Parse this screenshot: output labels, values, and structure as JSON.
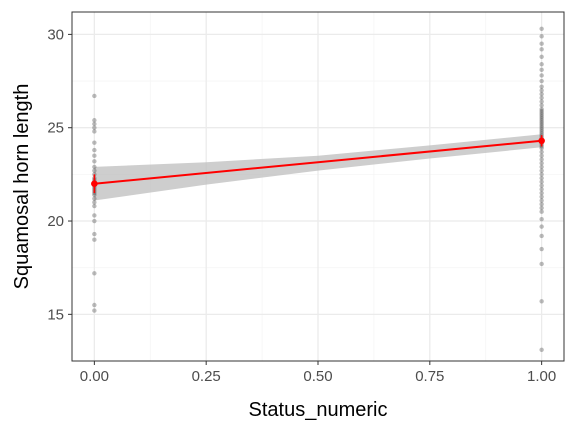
{
  "chart_data": {
    "type": "scatter",
    "xlabel": "Status_numeric",
    "ylabel": "Squamosal horn length",
    "xlim": [
      -0.05,
      1.05
    ],
    "ylim": [
      12.5,
      31.2
    ],
    "x_ticks": [
      0,
      0.25,
      0.5,
      0.75,
      1
    ],
    "x_tick_labels": [
      "0.00",
      "0.25",
      "0.50",
      "0.75",
      "1.00"
    ],
    "y_ticks": [
      15,
      20,
      25,
      30
    ],
    "y_tick_labels": [
      "15",
      "20",
      "25",
      "30"
    ],
    "grid": true,
    "points": {
      "x0": [
        15.2,
        15.5,
        17.2,
        19.0,
        19.3,
        20.0,
        20.3,
        20.8,
        21.0,
        21.2,
        21.4,
        21.5,
        21.6,
        21.7,
        21.8,
        21.9,
        22.0,
        22.1,
        22.2,
        22.3,
        22.5,
        22.7,
        22.9,
        23.2,
        23.5,
        23.8,
        24.2,
        24.8,
        25.0,
        25.2,
        25.4,
        26.7
      ],
      "x1": [
        13.1,
        15.7,
        17.7,
        18.5,
        19.2,
        19.7,
        20.1,
        20.5,
        20.7,
        20.9,
        21.1,
        21.3,
        21.5,
        21.7,
        21.9,
        22.1,
        22.3,
        22.5,
        22.7,
        22.9,
        23.1,
        23.3,
        23.5,
        23.7,
        23.9,
        24.0,
        24.1,
        24.2,
        24.3,
        24.4,
        24.5,
        24.6,
        24.7,
        24.8,
        24.9,
        25.0,
        25.1,
        25.2,
        25.3,
        25.4,
        25.5,
        25.6,
        25.7,
        25.8,
        25.9,
        26.0,
        26.2,
        26.4,
        26.6,
        26.8,
        27.0,
        27.2,
        27.5,
        27.8,
        28.1,
        28.4,
        28.8,
        29.2,
        29.5,
        29.9,
        30.3
      ]
    },
    "fit_line": {
      "x": [
        0,
        1
      ],
      "y": [
        22.0,
        24.3
      ]
    },
    "confidence_band": {
      "x": [
        0,
        0.25,
        0.5,
        0.75,
        1
      ],
      "lower": [
        21.1,
        21.95,
        22.7,
        23.35,
        23.95
      ],
      "upper": [
        22.9,
        23.15,
        23.5,
        24.05,
        24.65
      ]
    },
    "means": [
      {
        "x": 0,
        "y": 22.0,
        "ymin": 21.5,
        "ymax": 22.5
      },
      {
        "x": 1,
        "y": 24.3,
        "ymin": 24.0,
        "ymax": 24.6
      }
    ],
    "colors": {
      "fit": "#ff0000",
      "band": "#bebebe",
      "points": "#555555",
      "panel_border": "#333333",
      "grid_major": "#ebebeb",
      "grid_minor": "#f5f5f5"
    }
  }
}
